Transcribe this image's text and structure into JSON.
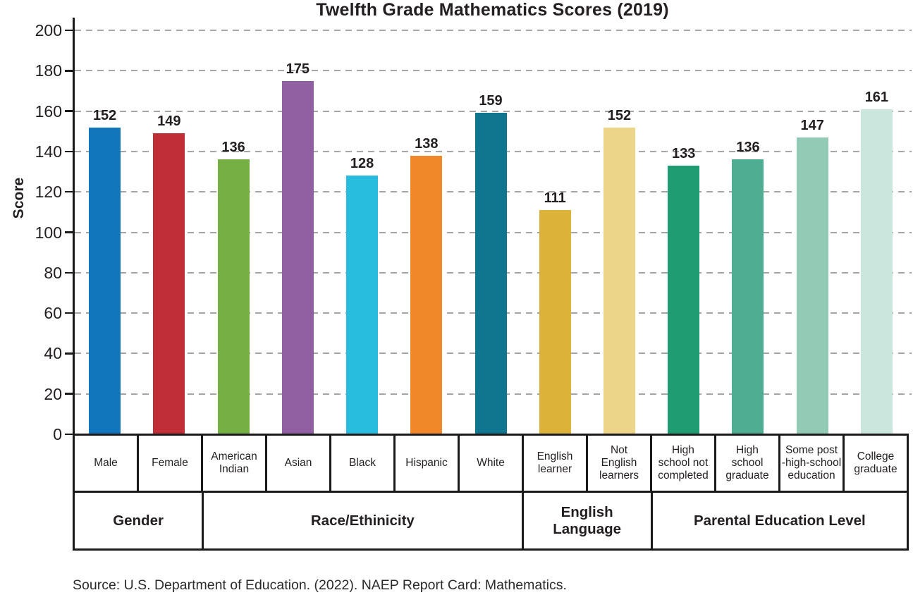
{
  "title": "Twelfth Grade Mathematics Scores (2019)",
  "y_axis": {
    "label": "Score",
    "ticks": [
      0,
      20,
      40,
      60,
      80,
      100,
      120,
      140,
      160,
      180,
      200
    ]
  },
  "source": "Source: U.S. Department of Education. (2022). NAEP Report Card: Mathematics.",
  "chart_data": {
    "type": "bar",
    "title": "Twelfth Grade Mathematics Scores (2019)",
    "xlabel": "",
    "ylabel": "Score",
    "ylim": [
      0,
      200
    ],
    "ytick_step": 20,
    "grid": "horizontal-dashed",
    "legend": "none",
    "categories": [
      "Male",
      "Female",
      "American Indian",
      "Asian",
      "Black",
      "Hispanic",
      "White",
      "English learner",
      "Not English learners",
      "High school not completed",
      "High school graduate",
      "Some post -high-school education",
      "College graduate"
    ],
    "category_label_lines": [
      [
        "Male"
      ],
      [
        "Female"
      ],
      [
        "American",
        "Indian"
      ],
      [
        "Asian"
      ],
      [
        "Black"
      ],
      [
        "Hispanic"
      ],
      [
        "White"
      ],
      [
        "English",
        "learner"
      ],
      [
        "Not",
        "English",
        "learners"
      ],
      [
        "High",
        "school not",
        "completed"
      ],
      [
        "High",
        "school",
        "graduate"
      ],
      [
        "Some post",
        "-high-school",
        "education"
      ],
      [
        "College",
        "graduate"
      ]
    ],
    "values": [
      152,
      149,
      136,
      175,
      128,
      138,
      159,
      111,
      152,
      133,
      136,
      147,
      161
    ],
    "bar_colors": [
      "#1276bd",
      "#c02f38",
      "#76b045",
      "#9160a2",
      "#28bcdf",
      "#f0882a",
      "#10758f",
      "#dcb239",
      "#ecd488",
      "#1f9c72",
      "#4fae91",
      "#93cab6",
      "#cbe6dc"
    ],
    "groups": [
      {
        "label": "Gender",
        "lines": [
          "Gender"
        ],
        "span": 2
      },
      {
        "label": "Race/Ethinicity",
        "lines": [
          "Race/Ethinicity"
        ],
        "span": 5
      },
      {
        "label": "English Language",
        "lines": [
          "English",
          "Language"
        ],
        "span": 2
      },
      {
        "label": "Parental Education Level",
        "lines": [
          "Parental Education Level"
        ],
        "span": 4
      }
    ]
  }
}
